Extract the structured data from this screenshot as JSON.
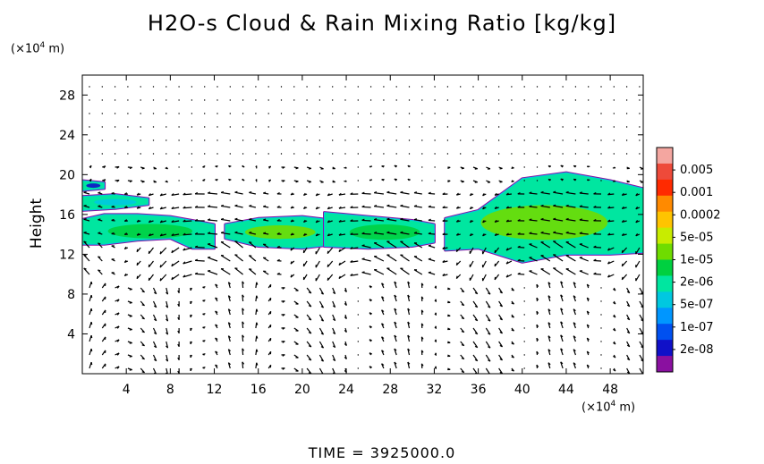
{
  "title": "H2O-s Cloud & Rain Mixing Ratio [kg/kg]",
  "y_unit": {
    "prefix": "(×10",
    "exp": "4",
    "suffix": " m)"
  },
  "x_unit": {
    "prefix": "(×10",
    "exp": "4",
    "suffix": " m)"
  },
  "time_label": "TIME = 3925000.0",
  "chart_data": {
    "type": "heatmap",
    "title": "H2O-s Cloud & Rain Mixing Ratio [kg/kg]",
    "xlabel": "",
    "ylabel": "Height",
    "xlim": [
      0,
      51
    ],
    "ylim": [
      0,
      30
    ],
    "x_ticks": [
      4,
      8,
      12,
      16,
      20,
      24,
      28,
      32,
      36,
      40,
      44,
      48
    ],
    "y_ticks": [
      4,
      8,
      12,
      16,
      20,
      24,
      28
    ],
    "colorbar": {
      "levels": [
        "0.005",
        "0.001",
        "0.0002",
        "5e-05",
        "1e-05",
        "2e-06",
        "5e-07",
        "1e-07",
        "2e-08"
      ],
      "colors": [
        "#f4a6a0",
        "#ee4a3a",
        "#ff2a00",
        "#ff8a00",
        "#ffc400",
        "#c8ec00",
        "#6fdc00",
        "#00d040",
        "#00e6a0",
        "#00c8e0",
        "#0096ff",
        "#0050f0",
        "#1010c8",
        "#8a10a0"
      ]
    },
    "cloud_regions": [
      {
        "x": [
          0,
          2,
          5,
          8,
          10,
          12
        ],
        "y_bottom": [
          13.0,
          13.0,
          13.4,
          13.6,
          12.6,
          12.6
        ],
        "y_top": [
          15.5,
          16.0,
          16.0,
          15.8,
          15.4,
          15.0
        ],
        "core": "#00d040"
      },
      {
        "x": [
          13,
          16,
          20,
          23
        ],
        "y_bottom": [
          13.6,
          12.8,
          12.6,
          13.0
        ],
        "y_top": [
          15.0,
          15.6,
          15.8,
          15.4
        ],
        "core": "#6fdc00"
      },
      {
        "x": [
          22,
          26,
          30,
          32
        ],
        "y_bottom": [
          12.8,
          12.6,
          12.8,
          13.2
        ],
        "y_top": [
          16.2,
          15.8,
          15.4,
          15.0
        ],
        "core": "#00d040"
      },
      {
        "x": [
          33,
          36,
          40,
          44,
          48,
          51
        ],
        "y_bottom": [
          12.4,
          12.6,
          11.2,
          12.0,
          12.0,
          12.2
        ],
        "y_top": [
          15.6,
          16.4,
          19.6,
          20.2,
          19.4,
          18.6
        ],
        "core": "#6fdc00"
      },
      {
        "x": [
          0,
          3,
          6
        ],
        "y_bottom": [
          16.4,
          16.6,
          17.0
        ],
        "y_top": [
          17.8,
          18.0,
          17.6
        ],
        "core": "#00c8e0"
      },
      {
        "x": [
          0,
          2
        ],
        "y_bottom": [
          18.4,
          18.6
        ],
        "y_top": [
          19.4,
          19.2
        ],
        "core": "#1010c8"
      }
    ]
  }
}
